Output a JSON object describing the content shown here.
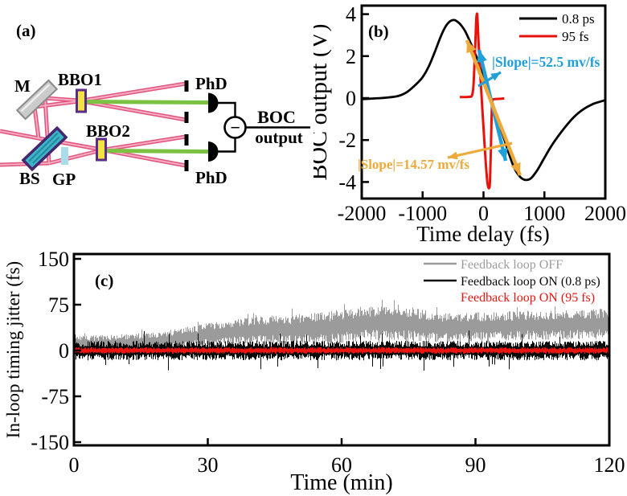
{
  "panel_a": {
    "label": "(a)",
    "labels": {
      "mirror": "M",
      "bbo1": "BBO1",
      "bbo2": "BBO2",
      "beamsplitter": "BS",
      "glass_plate": "GP",
      "phd_top": "PhD",
      "phd_bottom": "PhD",
      "boc_top": "BOC",
      "boc_bottom": "output",
      "minus": "−"
    },
    "colors": {
      "beam_pink": "#e2537e",
      "beam_pink_core": "#f5adc1",
      "beam_green": "#7cc242",
      "crystal_fill": "#f2e340",
      "crystal_border": "#5b2b8a",
      "bs_fill": "#3db5c8",
      "bs_border": "#44276f",
      "bs_streak": "#27879c",
      "gp_fill": "#a9dce8",
      "mirror_fill": "#cbcbcb",
      "mirror_border": "#8a8a8a"
    }
  },
  "chart_data": [
    {
      "id": "panel_b",
      "type": "line",
      "panel_label": "(b)",
      "title": "",
      "xlabel": "Time delay (fs)",
      "ylabel": "BOC output (V)",
      "xlim": [
        -2000,
        2000
      ],
      "ylim": [
        -4.8,
        4.4
      ],
      "xticks": [
        -2000,
        -1000,
        0,
        1000,
        2000
      ],
      "yticks": [
        -4,
        -2,
        0,
        2,
        4
      ],
      "grid": false,
      "legend_position": "top-right",
      "series": [
        {
          "name": "0.8 ps",
          "color": "#000000",
          "width": 2.8,
          "points": [
            [
              -2000,
              -0.05
            ],
            [
              -1800,
              -0.02
            ],
            [
              -1600,
              0.02
            ],
            [
              -1400,
              0.1
            ],
            [
              -1250,
              0.3
            ],
            [
              -1100,
              0.68
            ],
            [
              -1000,
              1.0
            ],
            [
              -900,
              1.5
            ],
            [
              -800,
              2.2
            ],
            [
              -700,
              2.95
            ],
            [
              -620,
              3.42
            ],
            [
              -550,
              3.66
            ],
            [
              -480,
              3.72
            ],
            [
              -420,
              3.62
            ],
            [
              -370,
              3.48
            ],
            [
              -300,
              3.18
            ],
            [
              -200,
              2.55
            ],
            [
              -100,
              1.85
            ],
            [
              0,
              1.0
            ],
            [
              100,
              0.2
            ],
            [
              200,
              -0.7
            ],
            [
              300,
              -1.6
            ],
            [
              400,
              -2.5
            ],
            [
              500,
              -3.3
            ],
            [
              600,
              -3.75
            ],
            [
              690,
              -3.9
            ],
            [
              780,
              -3.82
            ],
            [
              880,
              -3.45
            ],
            [
              980,
              -2.95
            ],
            [
              1080,
              -2.45
            ],
            [
              1180,
              -2.0
            ],
            [
              1330,
              -1.42
            ],
            [
              1480,
              -0.92
            ],
            [
              1630,
              -0.55
            ],
            [
              1800,
              -0.28
            ],
            [
              2000,
              -0.1
            ]
          ]
        },
        {
          "name": "95 fs",
          "color": "#e8120c",
          "width": 3,
          "points": [
            [
              -390,
              0.05
            ],
            [
              -300,
              0.05
            ],
            [
              -230,
              0.06
            ],
            [
              -190,
              0.12
            ],
            [
              -165,
              0.6
            ],
            [
              -140,
              2.2
            ],
            [
              -120,
              3.7
            ],
            [
              -110,
              4.0
            ],
            [
              -100,
              3.85
            ],
            [
              -80,
              2.6
            ],
            [
              -50,
              1.0
            ],
            [
              -20,
              -0.5
            ],
            [
              10,
              -1.9
            ],
            [
              40,
              -3.2
            ],
            [
              65,
              -4.05
            ],
            [
              90,
              -4.3
            ],
            [
              105,
              -4.0
            ],
            [
              120,
              -2.6
            ],
            [
              132,
              -1.0
            ],
            [
              142,
              -0.2
            ],
            [
              160,
              -0.06
            ],
            [
              240,
              -0.04
            ],
            [
              340,
              -0.02
            ]
          ]
        }
      ],
      "annotations": [
        {
          "id": "slope_fast_text",
          "kind": "text",
          "text": "|Slope|=52.5 mv/fs",
          "color": "#219fd9",
          "anchor": [
            138,
            1.53
          ]
        },
        {
          "id": "slope_slow_text",
          "kind": "text",
          "text": "|Slope|=14.57 mv/fs",
          "color": "#edaa3a",
          "anchor": [
            -2050,
            -3.33
          ]
        },
        {
          "id": "fast_slope_span",
          "kind": "double_arrow",
          "color": "#219fd9",
          "from": [
            -73,
            2.3
          ],
          "to": [
            363,
            -2.99
          ]
        },
        {
          "id": "slow_slope_span",
          "kind": "double_arrow",
          "color": "#edaa3a",
          "from": [
            -271,
            2.76
          ],
          "to": [
            600,
            -3.68
          ]
        },
        {
          "id": "fast_pointer",
          "kind": "arrow",
          "color": "#219fd9",
          "from": [
            -86,
            0.57
          ],
          "to": [
            284,
            1.23
          ]
        },
        {
          "id": "slow_pointer",
          "kind": "arrow",
          "color": "#edaa3a",
          "from": [
            468,
            -2.15
          ],
          "to": [
            -588,
            -2.84
          ]
        }
      ]
    },
    {
      "id": "panel_c",
      "type": "line",
      "panel_label": "(c)",
      "title": "",
      "xlabel": "Time (min)",
      "ylabel": "In-loop timing jitter (fs)",
      "xlim": [
        0,
        120
      ],
      "ylim": [
        -150,
        150
      ],
      "xticks": [
        0,
        30,
        60,
        90,
        120
      ],
      "yticks": [
        -150,
        -75,
        0,
        75,
        150
      ],
      "grid": false,
      "legend_position": "top-right",
      "series": [
        {
          "name": "Feedback loop OFF",
          "color": "#9b9b9b",
          "style": "noise_band",
          "seed": 7,
          "mean_keyframes": [
            [
              0,
              11
            ],
            [
              10,
              12
            ],
            [
              20,
              16
            ],
            [
              28,
              24
            ],
            [
              35,
              30
            ],
            [
              42,
              33
            ],
            [
              50,
              35
            ],
            [
              58,
              38
            ],
            [
              65,
              44
            ],
            [
              72,
              47
            ],
            [
              78,
              41
            ],
            [
              85,
              37
            ],
            [
              92,
              39
            ],
            [
              100,
              41
            ],
            [
              108,
              42
            ],
            [
              115,
              43
            ],
            [
              120,
              44
            ]
          ],
          "amp_keyframes": [
            [
              0,
              9
            ],
            [
              20,
              11
            ],
            [
              40,
              16
            ],
            [
              60,
              20
            ],
            [
              72,
              22
            ],
            [
              85,
              17
            ],
            [
              100,
              17
            ],
            [
              120,
              18
            ]
          ],
          "spike_prob": 0.06,
          "spike_gain": 1.6
        },
        {
          "name": "Feedback loop ON (0.8 ps)",
          "color": "#0a0a0a",
          "style": "noise_band",
          "seed": 13,
          "mean_keyframes": [
            [
              0,
              0
            ],
            [
              120,
              0
            ]
          ],
          "amp_keyframes": [
            [
              0,
              11.5
            ],
            [
              120,
              11.5
            ]
          ],
          "spike_prob": 0.035,
          "spike_gain": 2.4
        },
        {
          "name": "Feedback loop ON (95 fs)",
          "color": "#ee1410",
          "style": "noise_band",
          "seed": 21,
          "mean_keyframes": [
            [
              0,
              0
            ],
            [
              120,
              0
            ]
          ],
          "amp_keyframes": [
            [
              0,
              3.8
            ],
            [
              120,
              3.8
            ]
          ],
          "spike_prob": 0.02,
          "spike_gain": 1.5
        }
      ]
    }
  ]
}
